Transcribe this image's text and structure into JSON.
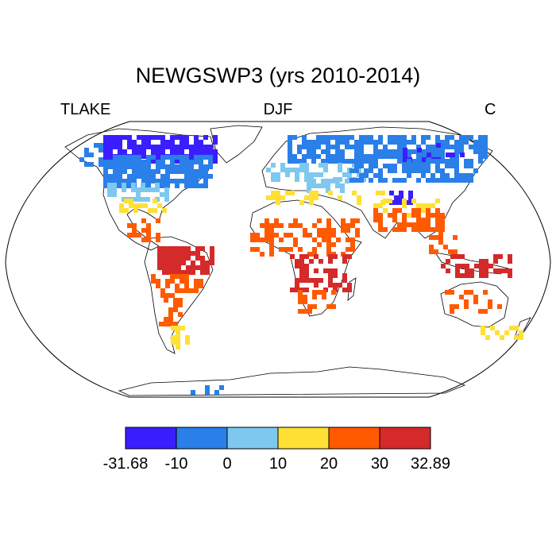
{
  "figure": {
    "title": "NEWGSWP3 (yrs 2010-2014)",
    "left_label": "TLAKE",
    "center_label": "DJF",
    "right_label": "C"
  },
  "colorbar": {
    "bins": [
      {
        "color": "#3b1eff"
      },
      {
        "color": "#2a7fe8"
      },
      {
        "color": "#7ec8f0"
      },
      {
        "color": "#ffe034"
      },
      {
        "color": "#ff5a00"
      },
      {
        "color": "#d42a2a"
      }
    ],
    "tick_labels": [
      "-31.68",
      "-10",
      "0",
      "10",
      "20",
      "30",
      "32.89"
    ]
  },
  "map_data": {
    "projection": "Robinson",
    "variable": "TLAKE",
    "season": "DJF",
    "units": "C",
    "value_range": [
      -31.68,
      32.89
    ],
    "regions": [
      {
        "region": "Northern Canada / Arctic islands",
        "bin": 0
      },
      {
        "region": "Canada",
        "bin": 1
      },
      {
        "region": "Northern United States",
        "bin": 2
      },
      {
        "region": "Southern United States",
        "bin": 3
      },
      {
        "region": "Mexico / Central America",
        "bin": 4
      },
      {
        "region": "Amazon / Brazil",
        "bin": 5
      },
      {
        "region": "Argentina",
        "bin": 4
      },
      {
        "region": "Patagonia",
        "bin": 3
      },
      {
        "region": "Northern Europe / Scandinavia",
        "bin": 1
      },
      {
        "region": "Siberia",
        "bin": 0
      },
      {
        "region": "Central Asia",
        "bin": 2
      },
      {
        "region": "Mediterranean / North Africa coast",
        "bin": 3
      },
      {
        "region": "Sahel / Central Africa",
        "bin": 4
      },
      {
        "region": "East Africa lakes",
        "bin": 5
      },
      {
        "region": "India",
        "bin": 4
      },
      {
        "region": "Southeast Asia",
        "bin": 4
      },
      {
        "region": "Indonesia / New Guinea",
        "bin": 5
      },
      {
        "region": "Australia",
        "bin": 4
      },
      {
        "region": "Antarctica coast",
        "bin": 1
      }
    ]
  }
}
